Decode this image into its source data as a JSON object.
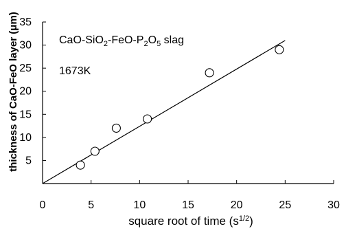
{
  "chart_data": {
    "type": "scatter",
    "xlabel_parts": [
      {
        "text": "square root of time (s",
        "sup": false
      },
      {
        "text": "1/2",
        "sup": true
      },
      {
        "text": ")",
        "sup": false
      }
    ],
    "ylabel": "thickness of CaO-FeO  layer (μm)",
    "xlim": [
      0,
      30
    ],
    "ylim": [
      0,
      35
    ],
    "x_ticks": [
      "0",
      "5",
      "10",
      "15",
      "20",
      "25",
      "30"
    ],
    "y_ticks": [
      "5",
      "10",
      "15",
      "20",
      "25",
      "30",
      "35"
    ],
    "grid": false,
    "annotation_slag_parts": [
      {
        "text": "CaO-SiO",
        "sub": false
      },
      {
        "text": "2",
        "sub": true
      },
      {
        "text": "-FeO-P",
        "sub": false
      },
      {
        "text": "2",
        "sub": true
      },
      {
        "text": "O",
        "sub": false
      },
      {
        "text": "5",
        "sub": true
      },
      {
        "text": " slag",
        "sub": false
      }
    ],
    "annotation_temperature": "1673K",
    "points": [
      {
        "x": 3.9,
        "y": 4.0
      },
      {
        "x": 5.4,
        "y": 7.0
      },
      {
        "x": 7.6,
        "y": 12.0
      },
      {
        "x": 10.8,
        "y": 14.0
      },
      {
        "x": 17.2,
        "y": 24.0
      },
      {
        "x": 24.4,
        "y": 29.0
      }
    ],
    "fit_line": {
      "x": [
        0,
        25
      ],
      "y": [
        0,
        31
      ]
    }
  }
}
